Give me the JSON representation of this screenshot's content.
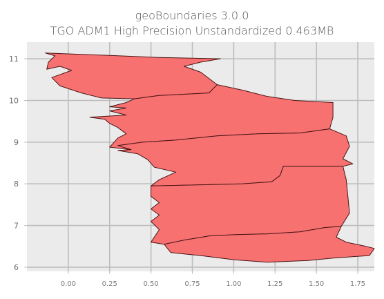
{
  "figure": {
    "title_line1": "geoBoundaries 3.0.0",
    "title_line2": "TGO ADM1 High Precision Unstandardized 0.463MB"
  },
  "colors": {
    "plot_background": "#ebebeb",
    "grid": "#bdbdbd",
    "region_fill": "#f87171",
    "region_edge": "#4a1414",
    "axis_spine": "#c0c0c0"
  },
  "chart_data": {
    "type": "map",
    "title": "geoBoundaries 3.0.0\nTGO ADM1 High Precision Unstandardized 0.463MB",
    "xlabel": "",
    "ylabel": "",
    "xlim": [
      -0.25,
      1.85
    ],
    "ylim": [
      5.9,
      11.4
    ],
    "grid": true,
    "xticks": [
      0.0,
      0.25,
      0.5,
      0.75,
      1.0,
      1.25,
      1.5,
      1.75
    ],
    "xtick_labels": [
      "0.00",
      "0.25",
      "0.50",
      "0.75",
      "1.00",
      "1.25",
      "1.50",
      "1.75"
    ],
    "yticks": [
      6,
      7,
      8,
      9,
      10,
      11
    ],
    "ytick_labels": [
      "6",
      "7",
      "8",
      "9",
      "10",
      "11"
    ],
    "regions": [
      {
        "outline": [
          [
            -0.14,
            11.14
          ],
          [
            0.25,
            11.08
          ],
          [
            0.55,
            11.03
          ],
          [
            0.92,
            11.0
          ],
          [
            0.8,
            10.92
          ],
          [
            0.7,
            10.82
          ],
          [
            0.8,
            10.68
          ],
          [
            0.9,
            10.38
          ],
          [
            0.85,
            10.18
          ],
          [
            0.7,
            10.15
          ],
          [
            0.55,
            10.12
          ],
          [
            0.4,
            10.04
          ],
          [
            0.2,
            10.06
          ],
          [
            0.08,
            10.18
          ],
          [
            -0.05,
            10.35
          ],
          [
            -0.1,
            10.55
          ],
          [
            0.02,
            10.72
          ],
          [
            -0.05,
            10.82
          ],
          [
            -0.13,
            10.75
          ],
          [
            -0.12,
            10.92
          ],
          [
            -0.08,
            11.07
          ],
          [
            -0.14,
            11.14
          ]
        ]
      },
      {
        "outline": [
          [
            0.4,
            10.04
          ],
          [
            0.55,
            10.12
          ],
          [
            0.7,
            10.15
          ],
          [
            0.85,
            10.18
          ],
          [
            0.9,
            10.38
          ],
          [
            1.05,
            10.25
          ],
          [
            1.2,
            10.1
          ],
          [
            1.37,
            10.0
          ],
          [
            1.6,
            9.95
          ],
          [
            1.6,
            9.6
          ],
          [
            1.58,
            9.32
          ],
          [
            1.4,
            9.22
          ],
          [
            1.15,
            9.2
          ],
          [
            0.9,
            9.15
          ],
          [
            0.65,
            9.05
          ],
          [
            0.45,
            9.0
          ],
          [
            0.3,
            8.92
          ],
          [
            0.38,
            8.82
          ],
          [
            0.25,
            8.88
          ],
          [
            0.3,
            9.1
          ],
          [
            0.35,
            9.2
          ],
          [
            0.3,
            9.35
          ],
          [
            0.25,
            9.45
          ],
          [
            0.22,
            9.55
          ],
          [
            0.13,
            9.6
          ],
          [
            0.35,
            9.65
          ],
          [
            0.25,
            9.75
          ],
          [
            0.35,
            9.82
          ],
          [
            0.25,
            9.85
          ],
          [
            0.35,
            9.95
          ],
          [
            0.4,
            10.04
          ]
        ]
      },
      {
        "outline": [
          [
            0.45,
            9.0
          ],
          [
            0.65,
            9.05
          ],
          [
            0.9,
            9.15
          ],
          [
            1.15,
            9.2
          ],
          [
            1.4,
            9.22
          ],
          [
            1.58,
            9.32
          ],
          [
            1.68,
            9.15
          ],
          [
            1.7,
            8.9
          ],
          [
            1.66,
            8.6
          ],
          [
            1.72,
            8.48
          ],
          [
            1.66,
            8.42
          ],
          [
            1.3,
            8.42
          ],
          [
            1.28,
            8.2
          ],
          [
            1.23,
            8.05
          ],
          [
            1.05,
            8.0
          ],
          [
            0.85,
            7.98
          ],
          [
            0.5,
            7.95
          ],
          [
            0.55,
            8.1
          ],
          [
            0.65,
            8.28
          ],
          [
            0.52,
            8.4
          ],
          [
            0.48,
            8.58
          ],
          [
            0.42,
            8.72
          ],
          [
            0.3,
            8.8
          ],
          [
            0.38,
            8.82
          ],
          [
            0.3,
            8.92
          ],
          [
            0.45,
            9.0
          ]
        ]
      },
      {
        "outline": [
          [
            0.5,
            7.95
          ],
          [
            0.85,
            7.98
          ],
          [
            1.05,
            8.0
          ],
          [
            1.23,
            8.05
          ],
          [
            1.28,
            8.2
          ],
          [
            1.3,
            8.42
          ],
          [
            1.66,
            8.42
          ],
          [
            1.68,
            8.1
          ],
          [
            1.69,
            7.7
          ],
          [
            1.7,
            7.3
          ],
          [
            1.65,
            6.98
          ],
          [
            1.55,
            6.95
          ],
          [
            1.4,
            6.85
          ],
          [
            1.2,
            6.8
          ],
          [
            1.0,
            6.78
          ],
          [
            0.85,
            6.75
          ],
          [
            0.7,
            6.65
          ],
          [
            0.58,
            6.55
          ],
          [
            0.5,
            6.6
          ],
          [
            0.55,
            6.9
          ],
          [
            0.5,
            7.1
          ],
          [
            0.55,
            7.25
          ],
          [
            0.5,
            7.4
          ],
          [
            0.55,
            7.55
          ],
          [
            0.5,
            7.7
          ],
          [
            0.5,
            7.95
          ]
        ]
      },
      {
        "outline": [
          [
            0.58,
            6.55
          ],
          [
            0.7,
            6.65
          ],
          [
            0.85,
            6.75
          ],
          [
            1.0,
            6.78
          ],
          [
            1.2,
            6.8
          ],
          [
            1.4,
            6.85
          ],
          [
            1.55,
            6.95
          ],
          [
            1.65,
            6.98
          ],
          [
            1.62,
            6.72
          ],
          [
            1.68,
            6.6
          ],
          [
            1.8,
            6.5
          ],
          [
            1.85,
            6.45
          ],
          [
            1.82,
            6.28
          ],
          [
            1.6,
            6.22
          ],
          [
            1.45,
            6.16
          ],
          [
            1.2,
            6.12
          ],
          [
            1.0,
            6.18
          ],
          [
            0.8,
            6.28
          ],
          [
            0.62,
            6.35
          ],
          [
            0.58,
            6.55
          ]
        ]
      }
    ]
  }
}
